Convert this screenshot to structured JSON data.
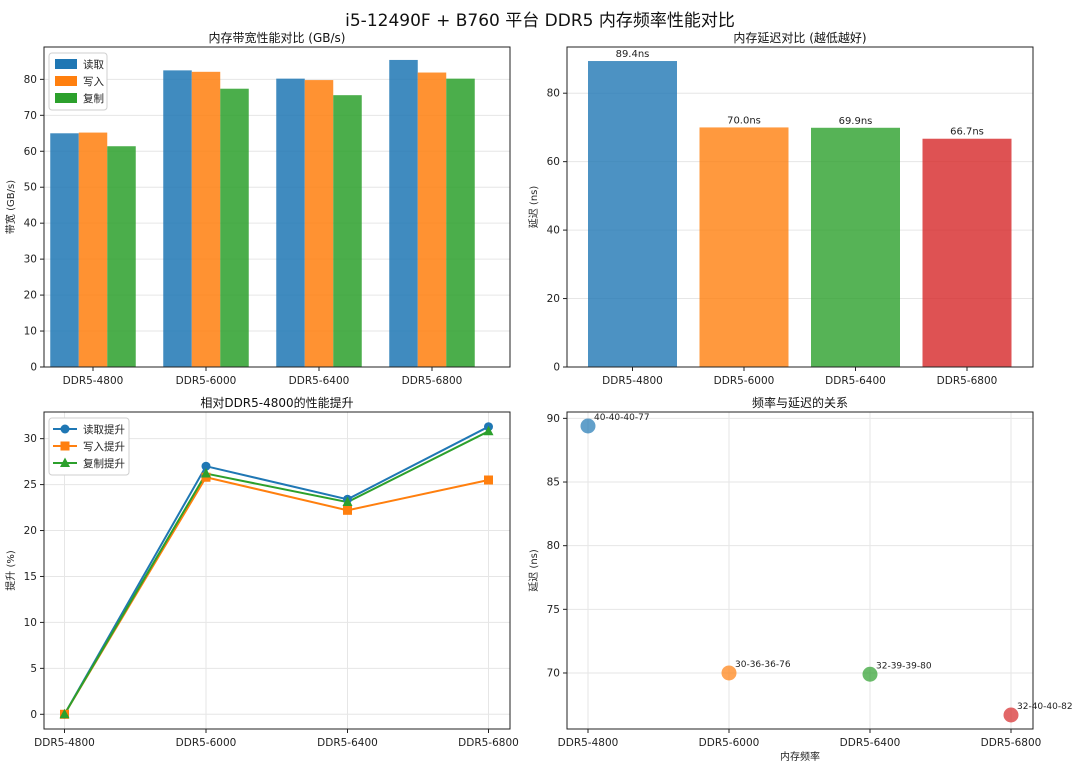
{
  "figure": {
    "title": "i5-12490F + B760 平台 DDR5 内存频率性能对比"
  },
  "chart_data": [
    {
      "type": "bar",
      "title": "内存带宽性能对比 (GB/s)",
      "xlabel": "",
      "ylabel": "带宽 (GB/s)",
      "ylim": [
        0,
        89
      ],
      "yticks": [
        0,
        10,
        20,
        30,
        40,
        50,
        60,
        70,
        80
      ],
      "categories": [
        "DDR5-4800",
        "DDR5-6000",
        "DDR5-6400",
        "DDR5-6800"
      ],
      "grid": true,
      "legend": "top-left",
      "series": [
        {
          "name": "读取",
          "color": "#1f77b4",
          "values": [
            65.0,
            82.5,
            80.2,
            85.4
          ]
        },
        {
          "name": "写入",
          "color": "#ff7f0e",
          "values": [
            65.2,
            82.1,
            79.8,
            81.9
          ]
        },
        {
          "name": "复制",
          "color": "#2ca02c",
          "values": [
            61.4,
            77.4,
            75.6,
            80.2
          ]
        }
      ]
    },
    {
      "type": "bar",
      "title": "内存延迟对比 (越低越好)",
      "xlabel": "",
      "ylabel": "延迟 (ns)",
      "ylim": [
        0,
        93.5
      ],
      "yticks": [
        0,
        20,
        40,
        60,
        80
      ],
      "categories": [
        "DDR5-4800",
        "DDR5-6000",
        "DDR5-6400",
        "DDR5-6800"
      ],
      "values": [
        89.4,
        70.0,
        69.9,
        66.7
      ],
      "data_labels": [
        "89.4ns",
        "70.0ns",
        "69.9ns",
        "66.7ns"
      ],
      "colors": [
        "#1f77b4",
        "#ff7f0e",
        "#2ca02c",
        "#d62728"
      ],
      "grid": true
    },
    {
      "type": "line",
      "title": "相对DDR5-4800的性能提升",
      "xlabel": "",
      "ylabel": "提升 (%)",
      "ylim": [
        -1.6,
        32.9
      ],
      "yticks": [
        0,
        5,
        10,
        15,
        20,
        25,
        30
      ],
      "categories": [
        "DDR5-4800",
        "DDR5-6000",
        "DDR5-6400",
        "DDR5-6800"
      ],
      "grid": true,
      "legend": "top-left",
      "series": [
        {
          "name": "读取提升",
          "color": "#1f77b4",
          "marker": "circle",
          "values": [
            0,
            27.0,
            23.4,
            31.3
          ]
        },
        {
          "name": "写入提升",
          "color": "#ff7f0e",
          "marker": "square",
          "values": [
            0,
            25.8,
            22.2,
            25.5
          ]
        },
        {
          "name": "复制提升",
          "color": "#2ca02c",
          "marker": "triangle",
          "values": [
            0,
            26.2,
            23.1,
            30.8
          ]
        }
      ]
    },
    {
      "type": "scatter",
      "title": "频率与延迟的关系",
      "xlabel": "内存频率",
      "ylabel": "延迟 (ns)",
      "ylim": [
        65.6,
        90.5
      ],
      "yticks": [
        70,
        75,
        80,
        85,
        90
      ],
      "categories": [
        "DDR5-4800",
        "DDR5-6000",
        "DDR5-6400",
        "DDR5-6800"
      ],
      "values": [
        89.4,
        70.0,
        69.9,
        66.7
      ],
      "annotations": [
        "40-40-40-77",
        "30-36-36-76",
        "32-39-39-80",
        "32-40-40-82"
      ],
      "colors": [
        "#1f77b4",
        "#ff7f0e",
        "#2ca02c",
        "#d62728"
      ],
      "grid": true
    }
  ]
}
